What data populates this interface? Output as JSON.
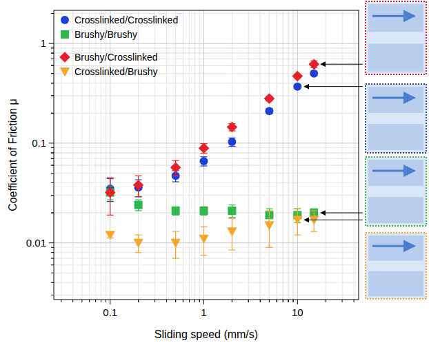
{
  "chart_data": {
    "type": "scatter",
    "x_label": "Sliding speed (mm/s)",
    "y_label": "Coefficient of Friction μ",
    "log": true,
    "grid": true,
    "legend": "upper left",
    "xlim": [
      0.025,
      45
    ],
    "ylim": [
      0.0027,
      2.15
    ],
    "xticks": [
      0.1,
      1,
      10
    ],
    "yticks": [
      0.01,
      0.1,
      1
    ],
    "series": [
      {
        "name": "Crosslinked/Crosslinked",
        "color": "#1c3fd6",
        "marker": "circle",
        "x": [
          0.1,
          0.2,
          0.5,
          1,
          2,
          5,
          10,
          15
        ],
        "values": [
          0.035,
          0.036,
          0.047,
          0.066,
          0.103,
          0.21,
          0.37,
          0.5
        ],
        "errors": [
          0.009,
          0.007,
          0.006,
          0.007,
          0.01,
          0.012,
          0.012,
          0.02
        ]
      },
      {
        "name": "Brushy/Brushy",
        "color": "#2fb84b",
        "marker": "square",
        "x": [
          0.1,
          0.2,
          0.5,
          1,
          2,
          5,
          10,
          15
        ],
        "values": [
          0.032,
          0.024,
          0.021,
          0.021,
          0.021,
          0.019,
          0.019,
          0.02
        ],
        "errors": [
          0.005,
          0.003,
          0.002,
          0.002,
          0.003,
          0.003,
          0.003,
          0.002
        ]
      },
      {
        "name": "Brushy/Crosslinked",
        "color": "#e4202b",
        "marker": "diamond",
        "x": [
          0.1,
          0.2,
          0.5,
          1,
          2,
          5,
          10,
          15
        ],
        "values": [
          0.032,
          0.038,
          0.057,
          0.089,
          0.145,
          0.28,
          0.47,
          0.62
        ],
        "errors": [
          0.013,
          0.009,
          0.01,
          0.01,
          0.012,
          0.015,
          0.02,
          0.05
        ]
      },
      {
        "name": "Crosslinked/Brushy",
        "color": "#f4a52a",
        "marker": "triangle-down",
        "x": [
          0.1,
          0.2,
          0.5,
          1,
          2,
          5,
          10,
          15
        ],
        "values": [
          0.012,
          0.01,
          0.01,
          0.011,
          0.013,
          0.015,
          0.017,
          0.017
        ],
        "errors": [
          0.0008,
          0.002,
          0.003,
          0.0035,
          0.0045,
          0.006,
          0.005,
          0.004
        ]
      }
    ]
  }
}
